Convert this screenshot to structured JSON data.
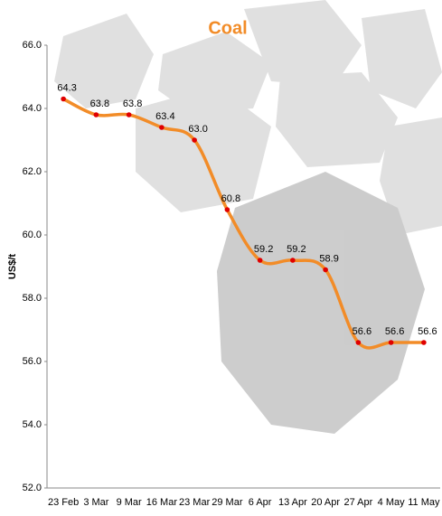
{
  "chart_data": {
    "type": "line",
    "title": "Coal",
    "y_label": "US$/t",
    "categories": [
      "23 Feb",
      "3 Mar",
      "9 Mar",
      "16 Mar",
      "23 Mar",
      "29 Mar",
      "6 Apr",
      "13 Apr",
      "20 Apr",
      "27 Apr",
      "4 May",
      "11 May"
    ],
    "series": [
      {
        "name": "Coal",
        "color": "#f28c28",
        "marker_color": "#e00000",
        "values": [
          64.3,
          63.8,
          63.8,
          63.4,
          63.0,
          60.8,
          59.2,
          59.2,
          58.9,
          56.6,
          56.6,
          56.6
        ],
        "value_labels": [
          "64.3",
          "63.8",
          "63.8",
          "63.4",
          "63.0",
          "60.8",
          "59.2",
          "59.2",
          "58.9",
          "56.6",
          "56.6",
          "56.6"
        ]
      }
    ],
    "ylim": [
      52,
      66
    ],
    "yticks": [
      {
        "value": 52,
        "label": "52.0"
      },
      {
        "value": 54,
        "label": "54.0"
      },
      {
        "value": 56,
        "label": "56.0"
      },
      {
        "value": 58,
        "label": "58.0"
      },
      {
        "value": 60,
        "label": "60.0"
      },
      {
        "value": 62,
        "label": "62.0"
      },
      {
        "value": 64,
        "label": "64.0"
      },
      {
        "value": 66,
        "label": "66.0"
      }
    ],
    "grid": false
  }
}
